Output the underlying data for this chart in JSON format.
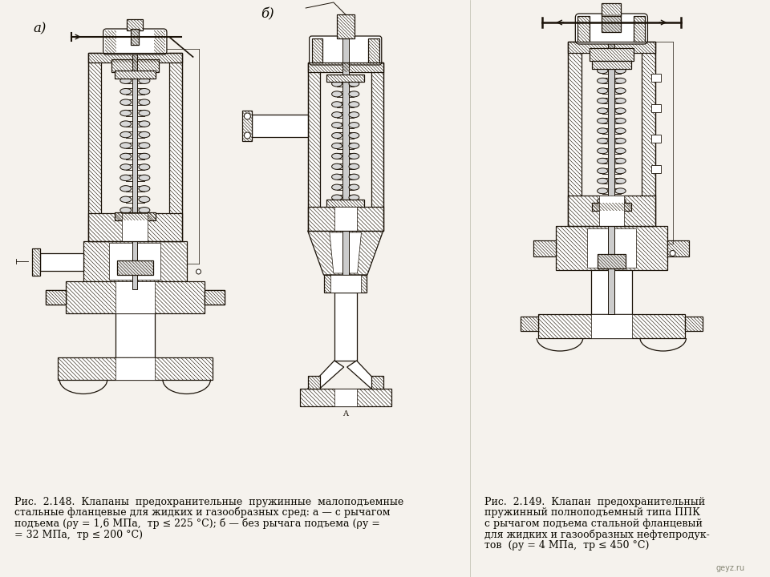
{
  "background_color": "#f5f2ed",
  "label_a": "a)",
  "label_b": "б)",
  "caption_left": [
    "Рис.  2.148.  Клапаны  предохранительные  пружинные  малоподъемные",
    "стальные фланцевые для жидких и газообразных сред: а — с рычагом",
    "подъема (ρу = 1,6 МПа,  тp ≤ 225 °C); б — без рычага подъема (ρу =",
    "= 32 МПа,  тp ≤ 200 °C)"
  ],
  "caption_right": [
    "Рис.  2.149.  Клапан  предохранительный",
    "пружинный полноподъемный типа ППК",
    "с рычагом подъема стальной фланцевый",
    "для жидких и газообразных нефтепродук-",
    "тов  (ρу = 4 МПа,  тp ≤ 450 °C)"
  ],
  "watermark": "geyz.ru",
  "lc": "#1a1208",
  "hc": "#2a2010",
  "fs_cap": 9.0,
  "fs_label": 12,
  "fig_w": 9.6,
  "fig_h": 7.2,
  "dpi": 100
}
